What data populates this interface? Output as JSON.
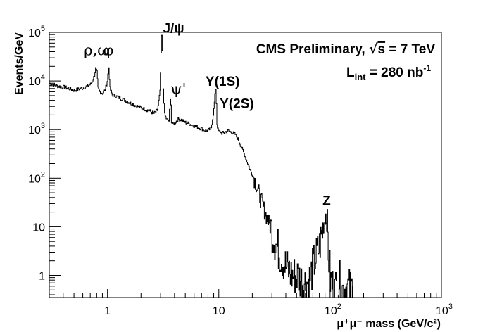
{
  "chart_data": {
    "type": "line",
    "title": "",
    "xlabel": "μ⁺μ⁻ mass (GeV/c²)",
    "ylabel": "Events/GeV",
    "xscale": "log",
    "yscale": "log",
    "xlim": [
      0.3,
      1000
    ],
    "ylim": [
      0.35,
      100000
    ],
    "grid": false,
    "legend": "none",
    "line_color": "#000000",
    "x_ticks": [
      {
        "value": 1,
        "label": "1",
        "exp": ""
      },
      {
        "value": 10,
        "label": "10",
        "exp": ""
      },
      {
        "value": 100,
        "label": "10",
        "exp": "2"
      },
      {
        "value": 1000,
        "label": "10",
        "exp": "3"
      }
    ],
    "y_ticks": [
      {
        "value": 1,
        "label": "1",
        "exp": ""
      },
      {
        "value": 10,
        "label": "10",
        "exp": ""
      },
      {
        "value": 100,
        "label": "10",
        "exp": "2"
      },
      {
        "value": 1000,
        "label": "10",
        "exp": "3"
      },
      {
        "value": 10000,
        "label": "10",
        "exp": "4"
      },
      {
        "value": 100000,
        "label": "10",
        "exp": "5"
      }
    ],
    "series": [
      {
        "x": [
          0.3,
          0.33,
          0.36,
          0.4,
          0.45,
          0.5,
          0.55,
          0.6,
          0.65,
          0.7,
          0.73,
          0.76,
          0.78,
          0.8,
          0.82,
          0.85,
          0.9,
          0.95,
          0.99,
          1.02,
          1.05,
          1.1,
          1.2,
          1.3,
          1.4,
          1.5,
          1.6,
          1.8,
          2.0,
          2.2,
          2.4,
          2.6,
          2.8,
          2.95,
          3.05,
          3.1,
          3.15,
          3.25,
          3.4,
          3.55,
          3.65,
          3.7,
          3.75,
          3.85,
          4.0,
          4.3,
          4.6,
          5.0,
          5.5,
          6.0,
          6.5,
          7.0,
          7.5,
          8.0,
          8.5,
          9.0,
          9.3,
          9.46,
          9.6,
          9.8,
          10.0,
          10.3,
          10.6,
          11.0,
          12.0,
          13.0,
          14.0,
          15.0,
          17.0,
          19.0,
          21.0,
          23.0,
          25.0,
          28.0,
          30.0,
          33.0,
          36.0,
          40.0,
          45.0,
          50.0,
          55.0,
          60.0,
          65.0,
          70.0,
          75.0,
          80.0,
          85.0,
          88.0,
          91.0,
          93.0,
          95.0,
          97.0,
          100.0,
          105.0,
          110.0,
          115.0,
          120.0,
          130.0,
          140.0,
          150.0,
          160.0
        ],
        "y": [
          9000,
          8200,
          7800,
          7500,
          7000,
          6400,
          6800,
          7200,
          7800,
          8500,
          10000,
          13000,
          18000,
          15000,
          7000,
          6000,
          5600,
          6500,
          10000,
          19000,
          7000,
          5200,
          4800,
          4400,
          4100,
          3800,
          3500,
          3100,
          2800,
          2600,
          2400,
          2150,
          2500,
          6000,
          85000,
          40000,
          7000,
          2000,
          1600,
          1500,
          4000,
          3500,
          1400,
          1300,
          1350,
          1650,
          1600,
          1400,
          1300,
          1200,
          1100,
          1050,
          950,
          950,
          1100,
          2600,
          7000,
          3500,
          1300,
          1000,
          900,
          900,
          850,
          850,
          950,
          880,
          800,
          600,
          300,
          150,
          90,
          45,
          25,
          12,
          8,
          4,
          2.5,
          1.5,
          1,
          1,
          0.8,
          0.7,
          0.8,
          1.5,
          2.5,
          4,
          8,
          12,
          18,
          12,
          6,
          2,
          0.8,
          0.6,
          0.5,
          0.6,
          0.8,
          0.5,
          0.6,
          0.5,
          0.6
        ]
      }
    ],
    "annotations": [
      {
        "name": "rho-omega",
        "x": 0.8,
        "y": 34000,
        "text": "ρ,ω",
        "style": "symbol",
        "anchor": "middle"
      },
      {
        "name": "phi",
        "x": 1.02,
        "y": 34000,
        "text": "φ",
        "style": "symbol",
        "anchor": "middle"
      },
      {
        "name": "jpsi",
        "x": 3.15,
        "y": 98000,
        "text": "J/ψ",
        "style": "bold",
        "anchor": "start"
      },
      {
        "name": "psi-prime",
        "x": 3.68,
        "y": 5400,
        "text": "ψ'",
        "style": "symbol",
        "anchor": "start"
      },
      {
        "name": "upsilon-1s",
        "x": 7.6,
        "y": 8000,
        "text": "Υ(1S)",
        "style": "bold",
        "anchor": "start"
      },
      {
        "name": "upsilon-2s",
        "x": 10.2,
        "y": 2800,
        "text": "Υ(2S)",
        "style": "bold",
        "anchor": "start"
      },
      {
        "name": "z-boson",
        "x": 93,
        "y": 28,
        "text": "Z",
        "style": "bold",
        "anchor": "middle"
      }
    ],
    "text_labels": {
      "cms_prefix": "CMS Preliminary, ",
      "sqrt_symbol": "√",
      "sqrt_var": "s",
      "energy": " = 7 TeV",
      "lumi_L": "L",
      "lumi_sub": "int",
      "lumi_value": " = 280 nb",
      "lumi_exp": "-1"
    }
  }
}
